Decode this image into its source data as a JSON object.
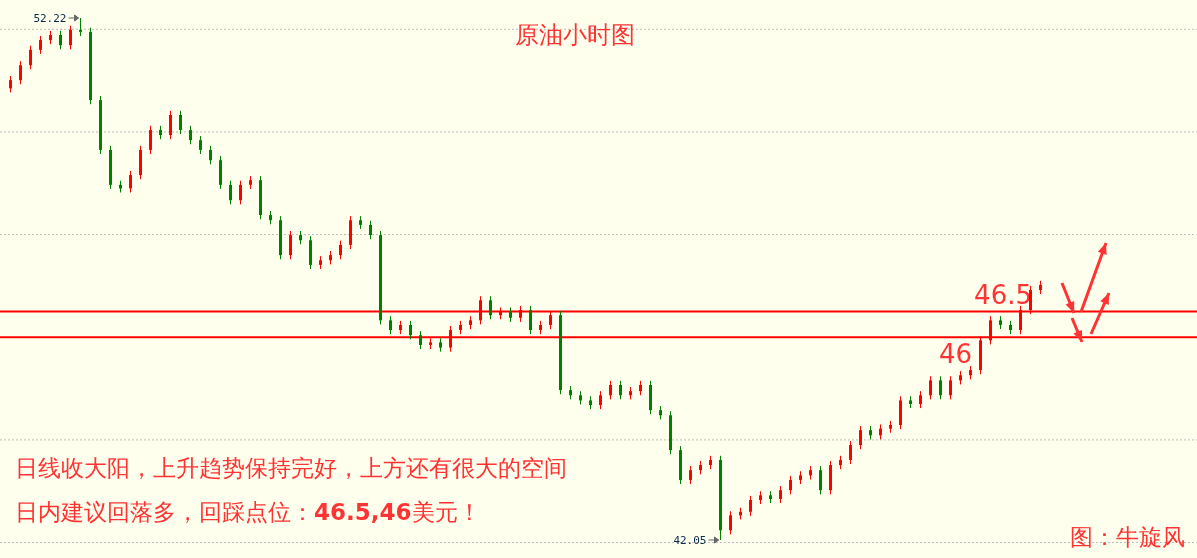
{
  "chart_data": {
    "type": "candlestick",
    "title": "原油小时图",
    "categories": [
      null,
      null,
      null,
      null,
      null,
      null,
      null,
      null,
      null,
      null,
      null,
      null,
      null,
      null,
      null,
      null,
      null,
      null,
      null,
      null,
      null,
      null,
      null,
      null,
      null,
      null,
      null,
      null,
      null,
      null,
      null,
      null,
      null,
      null,
      null,
      null,
      null,
      null,
      null,
      null,
      null,
      null,
      null,
      null,
      null,
      null,
      null,
      null,
      null,
      null,
      null,
      null,
      null,
      null,
      null,
      null,
      null,
      null,
      null,
      null,
      null,
      null,
      null,
      null,
      null,
      null,
      null,
      null,
      null,
      null,
      null,
      null,
      null,
      null,
      null,
      null,
      null,
      null,
      null,
      null,
      null,
      null,
      null,
      null,
      null,
      null,
      null,
      null,
      null,
      null,
      null,
      null,
      null,
      null,
      null,
      null,
      null,
      null,
      null,
      null,
      null,
      null,
      null,
      null
    ],
    "ohlc": [
      [
        50.85,
        51.09,
        50.77,
        51.01
      ],
      [
        51.01,
        51.38,
        50.93,
        51.3
      ],
      [
        51.3,
        51.68,
        51.22,
        51.6
      ],
      [
        51.6,
        51.87,
        51.52,
        51.79
      ],
      [
        51.79,
        51.97,
        51.71,
        51.89
      ],
      [
        51.89,
        51.97,
        51.61,
        51.69
      ],
      [
        51.69,
        52.07,
        51.61,
        51.99
      ],
      [
        51.99,
        52.22,
        51.87,
        51.95
      ],
      [
        51.95,
        52.03,
        50.54,
        50.62
      ],
      [
        50.62,
        50.7,
        49.57,
        49.65
      ],
      [
        49.65,
        49.73,
        48.89,
        48.97
      ],
      [
        48.97,
        49.05,
        48.82,
        48.9
      ],
      [
        48.9,
        49.24,
        48.82,
        49.16
      ],
      [
        49.16,
        49.73,
        49.08,
        49.65
      ],
      [
        49.65,
        50.12,
        49.57,
        50.04
      ],
      [
        50.04,
        50.12,
        49.86,
        49.94
      ],
      [
        49.94,
        50.41,
        49.86,
        50.33
      ],
      [
        50.33,
        50.41,
        49.96,
        50.04
      ],
      [
        50.04,
        50.12,
        49.76,
        49.84
      ],
      [
        49.84,
        49.92,
        49.57,
        49.65
      ],
      [
        49.65,
        49.73,
        49.37,
        49.45
      ],
      [
        49.45,
        49.53,
        48.89,
        48.97
      ],
      [
        48.97,
        49.05,
        48.59,
        48.67
      ],
      [
        48.67,
        49.05,
        48.59,
        48.97
      ],
      [
        48.97,
        49.14,
        48.89,
        49.06
      ],
      [
        49.06,
        49.14,
        48.3,
        48.38
      ],
      [
        48.38,
        48.46,
        48.2,
        48.28
      ],
      [
        48.28,
        48.36,
        47.52,
        47.6
      ],
      [
        47.6,
        48.07,
        47.52,
        47.99
      ],
      [
        47.99,
        48.07,
        47.81,
        47.89
      ],
      [
        47.89,
        47.97,
        47.33,
        47.41
      ],
      [
        47.41,
        47.58,
        47.33,
        47.5
      ],
      [
        47.5,
        47.68,
        47.42,
        47.6
      ],
      [
        47.6,
        47.88,
        47.52,
        47.8
      ],
      [
        47.8,
        48.36,
        47.72,
        48.28
      ],
      [
        48.28,
        48.36,
        48.11,
        48.19
      ],
      [
        48.19,
        48.27,
        47.91,
        47.99
      ],
      [
        47.99,
        48.07,
        46.25,
        46.33
      ],
      [
        46.33,
        46.41,
        46.06,
        46.14
      ],
      [
        46.14,
        46.32,
        46.06,
        46.24
      ],
      [
        46.24,
        46.32,
        45.96,
        46.04
      ],
      [
        46.04,
        46.12,
        45.77,
        45.85
      ],
      [
        45.85,
        45.98,
        45.77,
        45.9
      ],
      [
        45.9,
        45.98,
        45.72,
        45.8
      ],
      [
        45.8,
        46.22,
        45.72,
        46.14
      ],
      [
        46.14,
        46.32,
        46.06,
        46.24
      ],
      [
        46.24,
        46.41,
        46.16,
        46.33
      ],
      [
        46.33,
        46.8,
        46.25,
        46.72
      ],
      [
        46.72,
        46.8,
        46.35,
        46.43
      ],
      [
        46.43,
        46.58,
        46.35,
        46.5
      ],
      [
        46.5,
        46.58,
        46.3,
        46.38
      ],
      [
        46.38,
        46.61,
        46.3,
        46.53
      ],
      [
        46.53,
        46.61,
        46.06,
        46.14
      ],
      [
        46.14,
        46.32,
        46.06,
        46.24
      ],
      [
        46.24,
        46.51,
        46.16,
        46.43
      ],
      [
        46.43,
        46.51,
        44.89,
        44.97
      ],
      [
        44.97,
        45.05,
        44.79,
        44.87
      ],
      [
        44.87,
        44.95,
        44.69,
        44.77
      ],
      [
        44.77,
        44.85,
        44.6,
        44.68
      ],
      [
        44.68,
        44.95,
        44.6,
        44.87
      ],
      [
        44.87,
        45.15,
        44.79,
        45.07
      ],
      [
        45.07,
        45.15,
        44.79,
        44.87
      ],
      [
        44.87,
        45.03,
        44.79,
        44.95
      ],
      [
        44.95,
        45.15,
        44.87,
        45.07
      ],
      [
        45.07,
        45.15,
        44.5,
        44.58
      ],
      [
        44.58,
        44.66,
        44.4,
        44.48
      ],
      [
        44.48,
        44.56,
        43.72,
        43.8
      ],
      [
        43.8,
        43.88,
        43.14,
        43.22
      ],
      [
        43.22,
        43.49,
        43.14,
        43.41
      ],
      [
        43.41,
        43.59,
        43.33,
        43.51
      ],
      [
        43.51,
        43.69,
        43.43,
        43.61
      ],
      [
        43.61,
        43.69,
        42.05,
        42.24
      ],
      [
        42.24,
        42.61,
        42.16,
        42.53
      ],
      [
        42.53,
        42.68,
        42.45,
        42.6
      ],
      [
        42.6,
        42.91,
        42.52,
        42.83
      ],
      [
        42.83,
        43.0,
        42.75,
        42.92
      ],
      [
        42.92,
        43.0,
        42.77,
        42.85
      ],
      [
        42.85,
        43.1,
        42.77,
        43.02
      ],
      [
        43.02,
        43.3,
        42.94,
        43.22
      ],
      [
        43.22,
        43.39,
        43.14,
        43.31
      ],
      [
        43.31,
        43.49,
        43.23,
        43.41
      ],
      [
        43.41,
        43.49,
        42.94,
        43.02
      ],
      [
        43.02,
        43.59,
        42.94,
        43.51
      ],
      [
        43.51,
        43.69,
        43.43,
        43.61
      ],
      [
        43.61,
        43.98,
        43.53,
        43.9
      ],
      [
        43.9,
        44.27,
        43.82,
        44.19
      ],
      [
        44.19,
        44.27,
        44.01,
        44.09
      ],
      [
        44.09,
        44.3,
        44.01,
        44.22
      ],
      [
        44.22,
        44.37,
        44.14,
        44.29
      ],
      [
        44.29,
        44.85,
        44.21,
        44.77
      ],
      [
        44.77,
        44.85,
        44.62,
        44.7
      ],
      [
        44.7,
        44.95,
        44.62,
        44.87
      ],
      [
        44.87,
        45.24,
        44.79,
        45.16
      ],
      [
        45.16,
        45.24,
        44.79,
        44.87
      ],
      [
        44.87,
        45.24,
        44.79,
        45.16
      ],
      [
        45.16,
        45.34,
        45.08,
        45.26
      ],
      [
        45.26,
        45.44,
        45.18,
        45.36
      ],
      [
        45.36,
        46.02,
        45.28,
        45.94
      ],
      [
        45.94,
        46.41,
        45.86,
        46.33
      ],
      [
        46.33,
        46.41,
        46.16,
        46.24
      ],
      [
        46.24,
        46.32,
        46.06,
        46.14
      ],
      [
        46.14,
        46.61,
        46.06,
        46.53
      ],
      [
        46.53,
        47.0,
        46.45,
        46.92
      ],
      [
        46.92,
        47.1,
        46.84,
        47.02
      ]
    ],
    "yticks": [
      {
        "value": 42,
        "label": null
      },
      {
        "value": 44,
        "label": null
      },
      {
        "value": 46,
        "label": null
      },
      {
        "value": 48,
        "label": null
      },
      {
        "value": 50,
        "label": null
      },
      {
        "value": 52,
        "label": null
      }
    ],
    "grid": "y",
    "ref_lines": [
      {
        "axis": "y",
        "value": 46.5,
        "label": "46.5",
        "color": "#ff0000"
      },
      {
        "axis": "y",
        "value": 46,
        "label": "46",
        "color": "#ff0000"
      }
    ],
    "annotations": [
      "52.22",
      "42.05",
      "日线收大阳，上升趋势保持完好，上方还有很大的空间",
      "日内建议回落多，回踩点位：**46.5,46**美元！",
      "图：牛旋风"
    ]
  }
}
